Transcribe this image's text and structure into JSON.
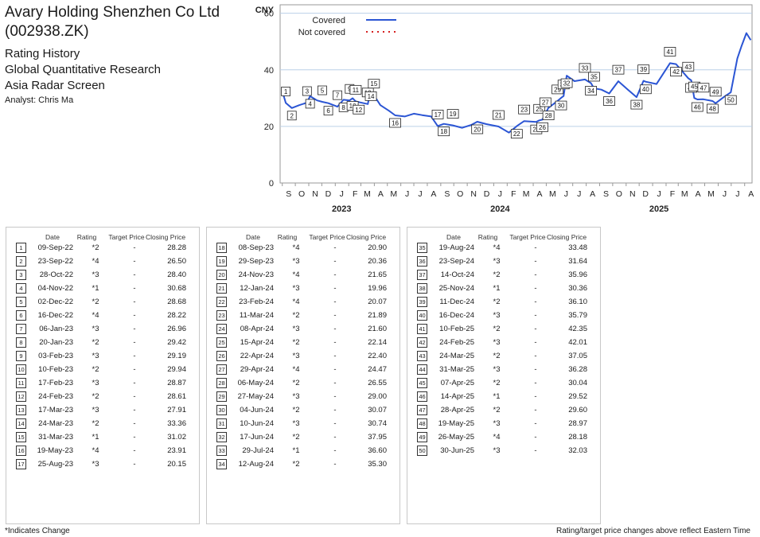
{
  "header": {
    "company": "Avary Holding Shenzhen Co Ltd",
    "ticker": "(002938.ZK)",
    "line1": "Rating History",
    "line2": "Global Quantitative Research",
    "line3": "Asia Radar Screen",
    "analyst": "Analyst: Chris Ma"
  },
  "table_headers": {
    "date": "Date",
    "rating": "Rating",
    "target": "Target Price",
    "closing": "Closing Price"
  },
  "ratings": [
    {
      "n": "1",
      "date": "09-Sep-22",
      "rating": "*2",
      "target": "-",
      "close": "28.28"
    },
    {
      "n": "2",
      "date": "23-Sep-22",
      "rating": "*4",
      "target": "-",
      "close": "26.50"
    },
    {
      "n": "3",
      "date": "28-Oct-22",
      "rating": "*3",
      "target": "-",
      "close": "28.40"
    },
    {
      "n": "4",
      "date": "04-Nov-22",
      "rating": "*1",
      "target": "-",
      "close": "30.68"
    },
    {
      "n": "5",
      "date": "02-Dec-22",
      "rating": "*2",
      "target": "-",
      "close": "28.68"
    },
    {
      "n": "6",
      "date": "16-Dec-22",
      "rating": "*4",
      "target": "-",
      "close": "28.22"
    },
    {
      "n": "7",
      "date": "06-Jan-23",
      "rating": "*3",
      "target": "-",
      "close": "26.96"
    },
    {
      "n": "8",
      "date": "20-Jan-23",
      "rating": "*2",
      "target": "-",
      "close": "29.42"
    },
    {
      "n": "9",
      "date": "03-Feb-23",
      "rating": "*3",
      "target": "-",
      "close": "29.19"
    },
    {
      "n": "10",
      "date": "10-Feb-23",
      "rating": "*2",
      "target": "-",
      "close": "29.94"
    },
    {
      "n": "11",
      "date": "17-Feb-23",
      "rating": "*3",
      "target": "-",
      "close": "28.87"
    },
    {
      "n": "12",
      "date": "24-Feb-23",
      "rating": "*2",
      "target": "-",
      "close": "28.61"
    },
    {
      "n": "13",
      "date": "17-Mar-23",
      "rating": "*3",
      "target": "-",
      "close": "27.91"
    },
    {
      "n": "14",
      "date": "24-Mar-23",
      "rating": "*2",
      "target": "-",
      "close": "33.36"
    },
    {
      "n": "15",
      "date": "31-Mar-23",
      "rating": "*1",
      "target": "-",
      "close": "31.02"
    },
    {
      "n": "16",
      "date": "19-May-23",
      "rating": "*4",
      "target": "-",
      "close": "23.91"
    },
    {
      "n": "17",
      "date": "25-Aug-23",
      "rating": "*3",
      "target": "-",
      "close": "20.15"
    },
    {
      "n": "18",
      "date": "08-Sep-23",
      "rating": "*4",
      "target": "-",
      "close": "20.90"
    },
    {
      "n": "19",
      "date": "29-Sep-23",
      "rating": "*3",
      "target": "-",
      "close": "20.36"
    },
    {
      "n": "20",
      "date": "24-Nov-23",
      "rating": "*4",
      "target": "-",
      "close": "21.65"
    },
    {
      "n": "21",
      "date": "12-Jan-24",
      "rating": "*3",
      "target": "-",
      "close": "19.96"
    },
    {
      "n": "22",
      "date": "23-Feb-24",
      "rating": "*4",
      "target": "-",
      "close": "20.07"
    },
    {
      "n": "23",
      "date": "11-Mar-24",
      "rating": "*2",
      "target": "-",
      "close": "21.89"
    },
    {
      "n": "24",
      "date": "08-Apr-24",
      "rating": "*3",
      "target": "-",
      "close": "21.60"
    },
    {
      "n": "25",
      "date": "15-Apr-24",
      "rating": "*2",
      "target": "-",
      "close": "22.14"
    },
    {
      "n": "26",
      "date": "22-Apr-24",
      "rating": "*3",
      "target": "-",
      "close": "22.40"
    },
    {
      "n": "27",
      "date": "29-Apr-24",
      "rating": "*4",
      "target": "-",
      "close": "24.47"
    },
    {
      "n": "28",
      "date": "06-May-24",
      "rating": "*2",
      "target": "-",
      "close": "26.55"
    },
    {
      "n": "29",
      "date": "27-May-24",
      "rating": "*3",
      "target": "-",
      "close": "29.00"
    },
    {
      "n": "30",
      "date": "04-Jun-24",
      "rating": "*2",
      "target": "-",
      "close": "30.07"
    },
    {
      "n": "31",
      "date": "10-Jun-24",
      "rating": "*3",
      "target": "-",
      "close": "30.74"
    },
    {
      "n": "32",
      "date": "17-Jun-24",
      "rating": "*2",
      "target": "-",
      "close": "37.95"
    },
    {
      "n": "33",
      "date": "29-Jul-24",
      "rating": "*1",
      "target": "-",
      "close": "36.60"
    },
    {
      "n": "34",
      "date": "12-Aug-24",
      "rating": "*2",
      "target": "-",
      "close": "35.30"
    },
    {
      "n": "35",
      "date": "19-Aug-24",
      "rating": "*4",
      "target": "-",
      "close": "33.48"
    },
    {
      "n": "36",
      "date": "23-Sep-24",
      "rating": "*3",
      "target": "-",
      "close": "31.64"
    },
    {
      "n": "37",
      "date": "14-Oct-24",
      "rating": "*2",
      "target": "-",
      "close": "35.96"
    },
    {
      "n": "38",
      "date": "25-Nov-24",
      "rating": "*1",
      "target": "-",
      "close": "30.36"
    },
    {
      "n": "39",
      "date": "11-Dec-24",
      "rating": "*2",
      "target": "-",
      "close": "36.10"
    },
    {
      "n": "40",
      "date": "16-Dec-24",
      "rating": "*3",
      "target": "-",
      "close": "35.79"
    },
    {
      "n": "41",
      "date": "10-Feb-25",
      "rating": "*2",
      "target": "-",
      "close": "42.35"
    },
    {
      "n": "42",
      "date": "24-Feb-25",
      "rating": "*3",
      "target": "-",
      "close": "42.01"
    },
    {
      "n": "43",
      "date": "24-Mar-25",
      "rating": "*2",
      "target": "-",
      "close": "37.05"
    },
    {
      "n": "44",
      "date": "31-Mar-25",
      "rating": "*3",
      "target": "-",
      "close": "36.28"
    },
    {
      "n": "45",
      "date": "07-Apr-25",
      "rating": "*2",
      "target": "-",
      "close": "30.04"
    },
    {
      "n": "46",
      "date": "14-Apr-25",
      "rating": "*1",
      "target": "-",
      "close": "29.52"
    },
    {
      "n": "47",
      "date": "28-Apr-25",
      "rating": "*2",
      "target": "-",
      "close": "29.60"
    },
    {
      "n": "48",
      "date": "19-May-25",
      "rating": "*3",
      "target": "-",
      "close": "28.97"
    },
    {
      "n": "49",
      "date": "26-May-25",
      "rating": "*4",
      "target": "-",
      "close": "28.18"
    },
    {
      "n": "50",
      "date": "30-Jun-25",
      "rating": "*3",
      "target": "-",
      "close": "32.03"
    }
  ],
  "footer": {
    "left": "*Indicates Change",
    "right": "Rating/target price changes above reflect Eastern Time"
  },
  "chart_data": {
    "type": "line",
    "ylabel": "CNY",
    "ylim": [
      0,
      63
    ],
    "yticks": [
      0,
      20,
      40,
      60
    ],
    "grid": "horizontal",
    "legend": [
      {
        "label": "Covered",
        "style": "solid",
        "color": "#2b55d4"
      },
      {
        "label": "Not covered",
        "style": "dotted",
        "color": "#d62020"
      }
    ],
    "month_labels": [
      "S",
      "O",
      "N",
      "D",
      "J",
      "F",
      "M",
      "A",
      "M",
      "J",
      "J",
      "A",
      "S",
      "O",
      "N",
      "D",
      "J",
      "F",
      "M",
      "A",
      "M",
      "J",
      "J",
      "A",
      "S",
      "O",
      "N",
      "D",
      "J",
      "F",
      "M",
      "A",
      "M",
      "J",
      "J",
      "A"
    ],
    "year_labels": [
      {
        "year": "2023",
        "month_index": 4
      },
      {
        "year": "2024",
        "month_index": 16
      },
      {
        "year": "2025",
        "month_index": 28
      }
    ],
    "series_color": "#2b55d4",
    "series": [
      {
        "name": "Covered",
        "x": [
          "2022-09-01",
          "2022-09-09",
          "2022-09-23",
          "2022-10-10",
          "2022-10-28",
          "2022-11-04",
          "2022-11-20",
          "2022-12-02",
          "2022-12-16",
          "2023-01-06",
          "2023-01-20",
          "2023-02-03",
          "2023-02-10",
          "2023-02-17",
          "2023-02-24",
          "2023-03-17",
          "2023-03-24",
          "2023-03-31",
          "2023-04-15",
          "2023-05-05",
          "2023-05-19",
          "2023-06-10",
          "2023-07-01",
          "2023-07-20",
          "2023-08-10",
          "2023-08-25",
          "2023-09-08",
          "2023-09-29",
          "2023-10-20",
          "2023-11-10",
          "2023-11-24",
          "2023-12-15",
          "2024-01-12",
          "2024-02-05",
          "2024-02-23",
          "2024-03-11",
          "2024-04-08",
          "2024-04-15",
          "2024-04-22",
          "2024-04-29",
          "2024-05-06",
          "2024-05-27",
          "2024-06-04",
          "2024-06-10",
          "2024-06-17",
          "2024-07-05",
          "2024-07-29",
          "2024-08-12",
          "2024-08-19",
          "2024-09-05",
          "2024-09-23",
          "2024-10-14",
          "2024-11-05",
          "2024-11-25",
          "2024-12-11",
          "2024-12-16",
          "2025-01-10",
          "2025-02-10",
          "2025-02-24",
          "2025-03-24",
          "2025-03-31",
          "2025-04-07",
          "2025-04-14",
          "2025-04-28",
          "2025-05-19",
          "2025-05-26",
          "2025-06-15",
          "2025-06-30",
          "2025-07-15",
          "2025-07-25",
          "2025-08-05",
          "2025-08-15"
        ],
        "y": [
          32.5,
          28.28,
          26.5,
          27.5,
          28.4,
          30.68,
          29.2,
          28.68,
          28.22,
          26.96,
          29.42,
          29.19,
          29.94,
          28.87,
          28.61,
          27.91,
          33.36,
          31.02,
          27.5,
          25.5,
          23.91,
          23.5,
          24.5,
          24,
          23.5,
          20.15,
          20.9,
          20.36,
          19.5,
          20.5,
          21.65,
          20.8,
          19.96,
          17.8,
          20.07,
          21.89,
          21.6,
          22.14,
          22.4,
          24.47,
          26.55,
          29,
          30.07,
          30.74,
          37.95,
          36,
          36.6,
          35.3,
          33.48,
          33,
          31.64,
          35.96,
          33,
          30.36,
          36.1,
          35.79,
          35,
          42.35,
          42.01,
          37.05,
          36.28,
          30.04,
          29.52,
          29.6,
          28.97,
          28.18,
          30.5,
          32.03,
          44,
          48.5,
          53,
          50.5
        ]
      }
    ],
    "annotations": [
      {
        "n": "1",
        "date": "2022-09-09"
      },
      {
        "n": "2",
        "date": "2022-09-23"
      },
      {
        "n": "3",
        "date": "2022-10-28"
      },
      {
        "n": "4",
        "date": "2022-11-04"
      },
      {
        "n": "5",
        "date": "2022-12-02"
      },
      {
        "n": "6",
        "date": "2022-12-16"
      },
      {
        "n": "7",
        "date": "2023-01-06"
      },
      {
        "n": "8",
        "date": "2023-01-20"
      },
      {
        "n": "9",
        "date": "2023-02-03"
      },
      {
        "n": "10",
        "date": "2023-02-10"
      },
      {
        "n": "11",
        "date": "2023-02-17"
      },
      {
        "n": "12",
        "date": "2023-02-24"
      },
      {
        "n": "13",
        "date": "2023-03-17"
      },
      {
        "n": "14",
        "date": "2023-03-24"
      },
      {
        "n": "15",
        "date": "2023-03-31"
      },
      {
        "n": "16",
        "date": "2023-05-19"
      },
      {
        "n": "17",
        "date": "2023-08-25"
      },
      {
        "n": "18",
        "date": "2023-09-08"
      },
      {
        "n": "19",
        "date": "2023-09-29"
      },
      {
        "n": "20",
        "date": "2023-11-24"
      },
      {
        "n": "21",
        "date": "2024-01-12"
      },
      {
        "n": "22",
        "date": "2024-02-23"
      },
      {
        "n": "23",
        "date": "2024-03-11"
      },
      {
        "n": "24",
        "date": "2024-04-08"
      },
      {
        "n": "25",
        "date": "2024-04-15"
      },
      {
        "n": "26",
        "date": "2024-04-22"
      },
      {
        "n": "27",
        "date": "2024-04-29"
      },
      {
        "n": "28",
        "date": "2024-05-06"
      },
      {
        "n": "29",
        "date": "2024-05-27"
      },
      {
        "n": "30",
        "date": "2024-06-04"
      },
      {
        "n": "31",
        "date": "2024-06-10"
      },
      {
        "n": "32",
        "date": "2024-06-17"
      },
      {
        "n": "33",
        "date": "2024-07-29"
      },
      {
        "n": "34",
        "date": "2024-08-12"
      },
      {
        "n": "35",
        "date": "2024-08-19"
      },
      {
        "n": "36",
        "date": "2024-09-23"
      },
      {
        "n": "37",
        "date": "2024-10-14"
      },
      {
        "n": "38",
        "date": "2024-11-25"
      },
      {
        "n": "39",
        "date": "2024-12-11"
      },
      {
        "n": "40",
        "date": "2024-12-16"
      },
      {
        "n": "41",
        "date": "2025-02-10"
      },
      {
        "n": "42",
        "date": "2025-02-24"
      },
      {
        "n": "43",
        "date": "2025-03-24"
      },
      {
        "n": "44",
        "date": "2025-03-31"
      },
      {
        "n": "45",
        "date": "2025-04-07"
      },
      {
        "n": "46",
        "date": "2025-04-14"
      },
      {
        "n": "47",
        "date": "2025-04-28"
      },
      {
        "n": "48",
        "date": "2025-05-19"
      },
      {
        "n": "49",
        "date": "2025-05-26"
      },
      {
        "n": "50",
        "date": "2025-06-30"
      }
    ]
  }
}
